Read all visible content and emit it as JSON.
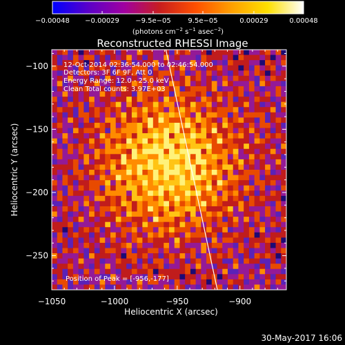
{
  "chart_data": {
    "type": "heatmap",
    "title": "Reconstructed RHESSI Image",
    "xlabel": "Heliocentric X (arcsec)",
    "ylabel": "Heliocentric Y (arcsec)",
    "xlim": [
      -1050,
      -863
    ],
    "ylim": [
      -277,
      -87
    ],
    "x_ticks": [
      -1050,
      -1000,
      -950,
      -900
    ],
    "x_tick_labels": [
      "−1050",
      "−1000",
      "−950",
      "−900"
    ],
    "y_ticks": [
      -100,
      -150,
      -200,
      -250
    ],
    "y_tick_labels": [
      "−100",
      "−150",
      "−200",
      "−250"
    ],
    "colorbar": {
      "range": [
        -0.00048,
        0.00048
      ],
      "ticks": [
        -0.00048,
        -0.00029,
        -9.5e-05,
        9.5e-05,
        0.00029,
        0.00048
      ],
      "tick_labels": [
        "−0.00048",
        "−0.00029",
        "−9.5e−05",
        "9.5e−05",
        "0.00029",
        "0.00048"
      ],
      "unit_text": "(photons cm",
      "unit_exp1": "−2",
      "unit_mid": " s",
      "unit_exp2": "−1",
      "unit_end": " asec",
      "unit_exp3": "−2",
      "unit_close": ")",
      "colors": [
        "#0000ff",
        "#5a00c8",
        "#a000a0",
        "#c81e1e",
        "#ff5000",
        "#ffa000",
        "#ffe000",
        "#ffffff"
      ]
    },
    "annotations": [
      "12-Oct-2014 02:36:54.000 to 02:46:54.000",
      "Detectors: 3F 6F 9F, Att 0",
      "Energy Range: 12.0 - 25.0 keV",
      "Clean    Total counts: 3.97E+03"
    ],
    "peak_label": "Position of Peak = [-956,-177]",
    "peak_position": [
      -956,
      -177
    ],
    "limb_line": {
      "x": [
        -959,
        -918
      ],
      "y": [
        -87,
        -277
      ]
    },
    "background_color": "#000000",
    "grid": false
  },
  "footer": {
    "date": "30-May-2017 16:06"
  }
}
